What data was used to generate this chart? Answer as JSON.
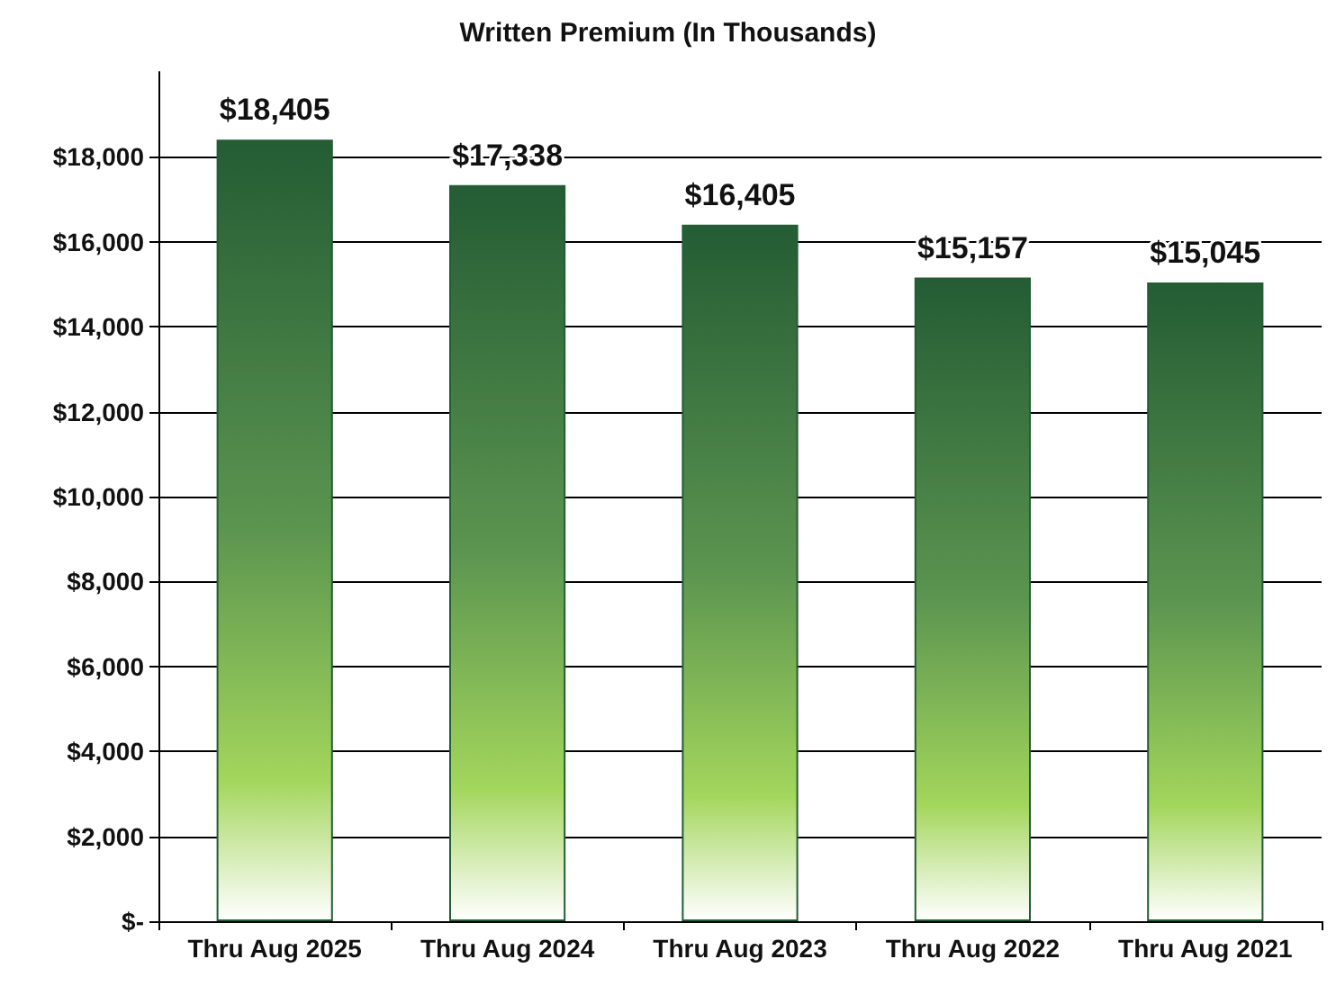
{
  "chart_data": {
    "type": "bar",
    "title": "Written Premium (In Thousands)",
    "categories": [
      "Thru Aug 2025",
      "Thru Aug 2024",
      "Thru Aug 2023",
      "Thru Aug 2022",
      "Thru Aug 2021"
    ],
    "values": [
      18405,
      17338,
      16405,
      15157,
      15045
    ],
    "value_labels": [
      "$18,405",
      "$17,338",
      "$16,405",
      "$15,157",
      "$15,045"
    ],
    "color": "#245c34",
    "ylim": [
      0,
      20000
    ],
    "yticks": [
      {
        "value": 0,
        "label": "$-"
      },
      {
        "value": 2000,
        "label": "$2,000"
      },
      {
        "value": 4000,
        "label": "$4,000"
      },
      {
        "value": 6000,
        "label": "$6,000"
      },
      {
        "value": 8000,
        "label": "$8,000"
      },
      {
        "value": 10000,
        "label": "$10,000"
      },
      {
        "value": 12000,
        "label": "$12,000"
      },
      {
        "value": 14000,
        "label": "$14,000"
      },
      {
        "value": 16000,
        "label": "$16,000"
      },
      {
        "value": 18000,
        "label": "$18,000"
      }
    ],
    "grid": "y"
  }
}
